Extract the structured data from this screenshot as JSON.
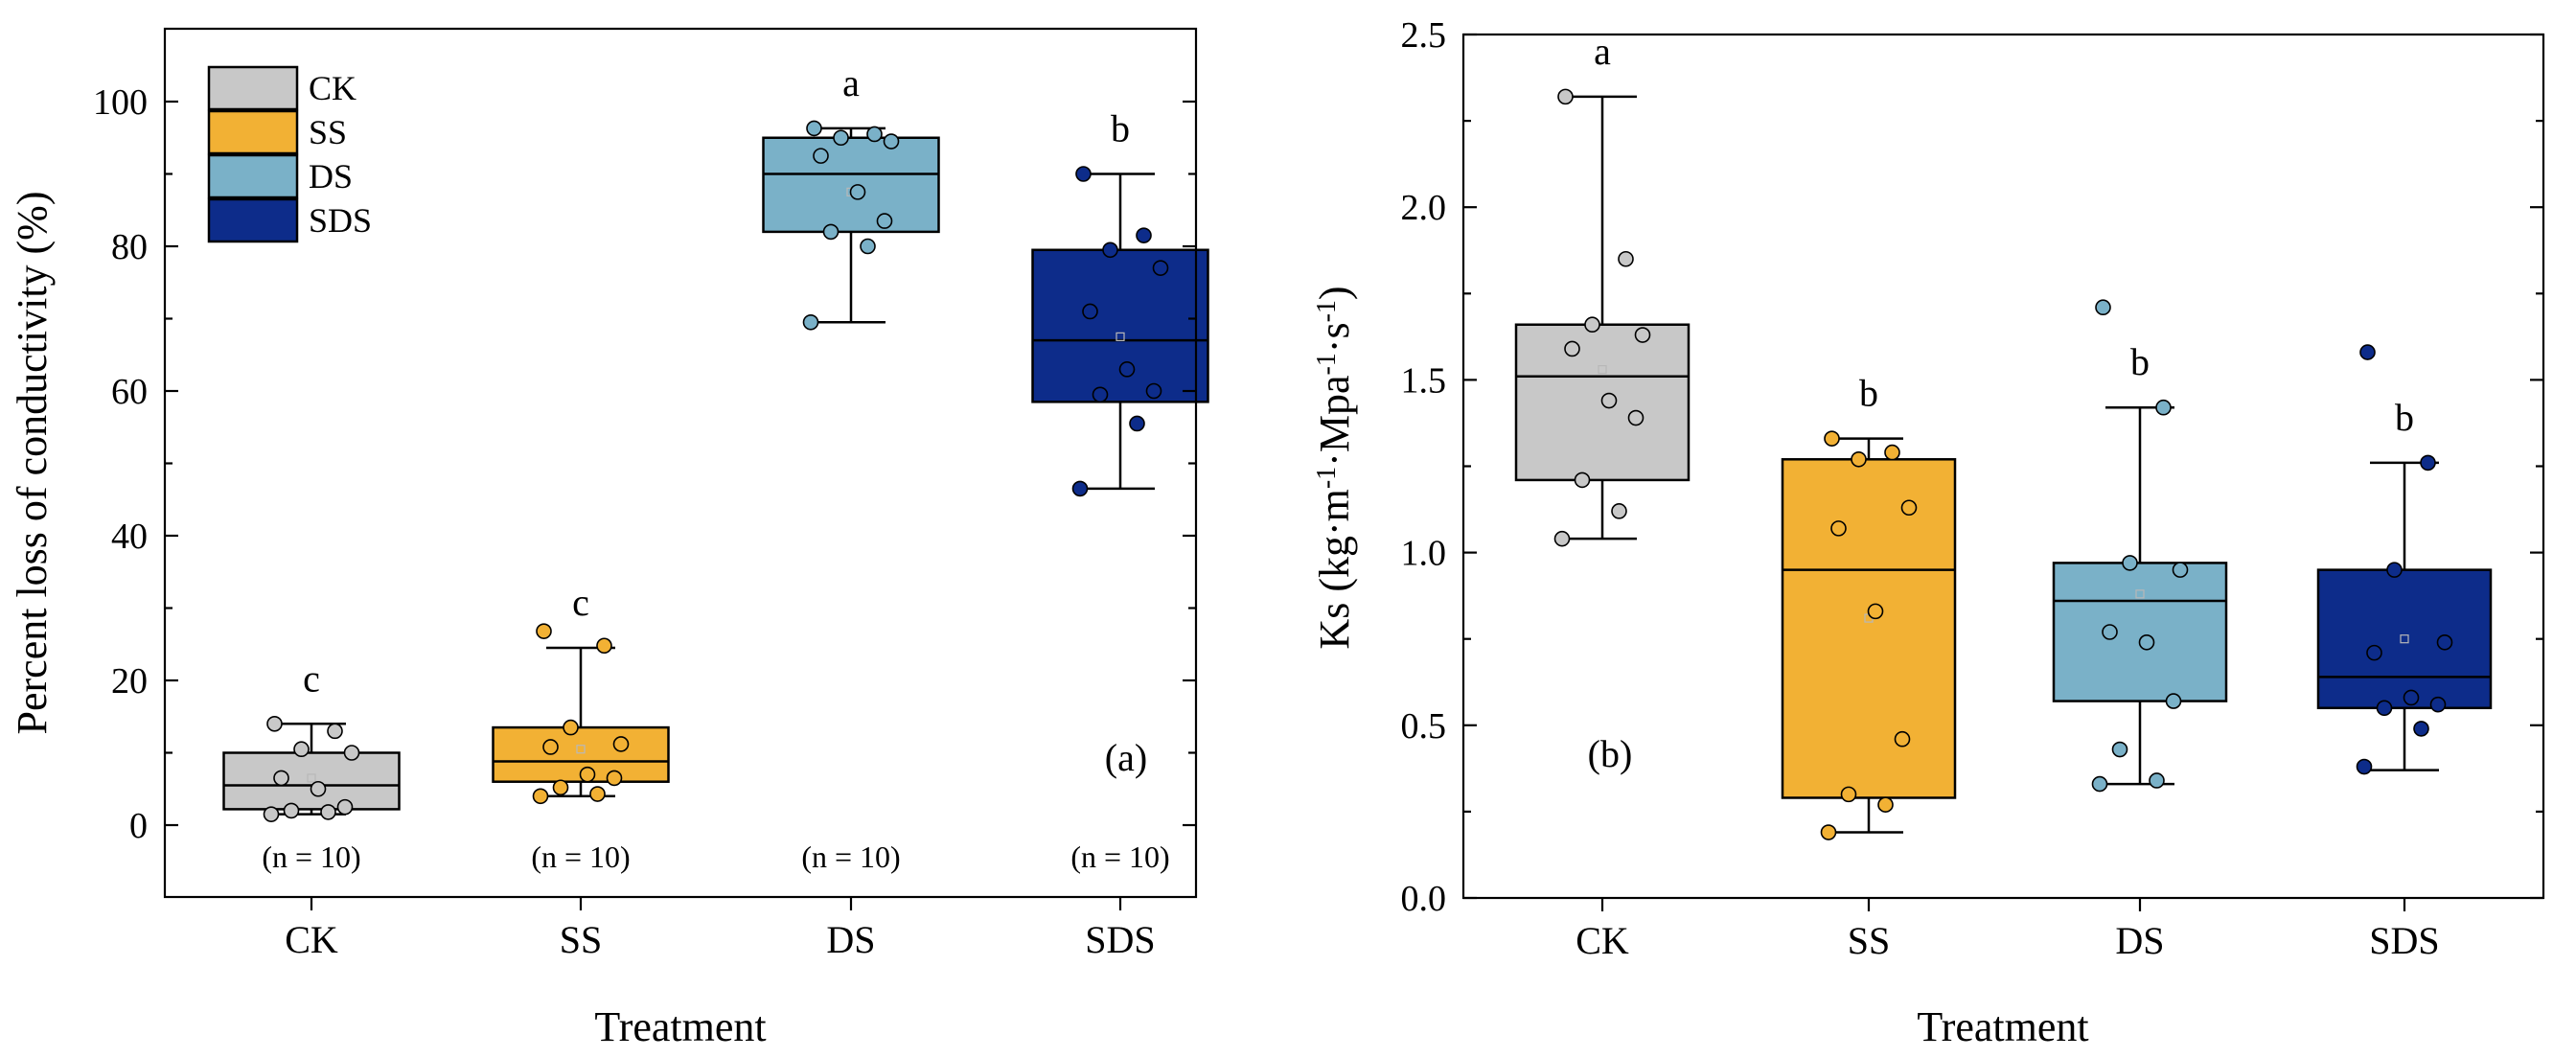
{
  "colors": {
    "CK": "#c8c8c8",
    "SS": "#f2b134",
    "DS": "#7ab1c8",
    "SDS": "#0d2c8a",
    "mean_marker": "#b8b8b8"
  },
  "legend": [
    "CK",
    "SS",
    "DS",
    "SDS"
  ],
  "chart_data": [
    {
      "type": "box",
      "panel": "(a)",
      "xlabel": "Treatment",
      "ylabel": "Percent loss of conductivity (%)",
      "ylim": [
        -10,
        110
      ],
      "yticks": [
        "0",
        "20",
        "40",
        "60",
        "80",
        "100"
      ],
      "categories": [
        "CK",
        "SS",
        "DS",
        "SDS"
      ],
      "significance": [
        "c",
        "c",
        "a",
        "b"
      ],
      "n_labels": [
        "(n = 10)",
        "(n = 10)",
        "(n = 10)",
        "(n = 10)"
      ],
      "boxes": [
        {
          "name": "CK",
          "q1": 2.2,
          "median": 5.5,
          "q3": 10,
          "whisker_low": 1.5,
          "whisker_high": 14,
          "mean": 6.5,
          "points": [
            14,
            13,
            10.5,
            10,
            6.5,
            5,
            2.5,
            2,
            1.8,
            1.5
          ]
        },
        {
          "name": "SS",
          "q1": 6,
          "median": 8.8,
          "q3": 13.5,
          "whisker_low": 4,
          "whisker_high": 24.5,
          "mean": 10.5,
          "points": [
            26.8,
            24.8,
            13.5,
            11.2,
            10.8,
            7,
            6.5,
            5.2,
            4.3,
            4
          ]
        },
        {
          "name": "DS",
          "q1": 82,
          "median": 90,
          "q3": 95,
          "whisker_low": 69.5,
          "whisker_high": 96.3,
          "mean": 87.5,
          "points": [
            96.3,
            95.5,
            95,
            94.5,
            92.5,
            87.5,
            83.5,
            82,
            80,
            69.5
          ]
        },
        {
          "name": "SDS",
          "q1": 58.5,
          "median": 67,
          "q3": 79.5,
          "whisker_low": 46.5,
          "whisker_high": 90,
          "mean": 67.5,
          "points": [
            90,
            81.5,
            79.5,
            77,
            71,
            63,
            60,
            59.5,
            55.5,
            46.5
          ]
        }
      ]
    },
    {
      "type": "box",
      "panel": "(b)",
      "xlabel": "Treatment",
      "ylabel": "Ks (kg·m⁻¹·Mpa⁻¹·s⁻¹)",
      "ylim": [
        0,
        2.5
      ],
      "yticks": [
        "0.0",
        "0.5",
        "1.0",
        "1.5",
        "2.0",
        "2.5"
      ],
      "categories": [
        "CK",
        "SS",
        "DS",
        "SDS"
      ],
      "significance": [
        "a",
        "b",
        "b",
        "b"
      ],
      "boxes": [
        {
          "name": "CK",
          "q1": 1.21,
          "median": 1.51,
          "q3": 1.66,
          "whisker_low": 1.04,
          "whisker_high": 2.32,
          "mean": 1.53,
          "points": [
            2.32,
            1.85,
            1.66,
            1.63,
            1.59,
            1.44,
            1.39,
            1.21,
            1.12,
            1.04
          ]
        },
        {
          "name": "SS",
          "q1": 0.29,
          "median": 0.95,
          "q3": 1.27,
          "whisker_low": 0.19,
          "whisker_high": 1.33,
          "mean": 0.81,
          "points": [
            1.33,
            1.29,
            1.27,
            1.13,
            1.07,
            0.83,
            0.46,
            0.3,
            0.27,
            0.19
          ]
        },
        {
          "name": "DS",
          "q1": 0.57,
          "median": 0.86,
          "q3": 0.97,
          "whisker_low": 0.33,
          "whisker_high": 1.42,
          "mean": 0.88,
          "points": [
            1.71,
            1.42,
            0.97,
            0.95,
            0.77,
            0.74,
            0.57,
            0.43,
            0.34,
            0.33
          ]
        },
        {
          "name": "SDS",
          "q1": 0.55,
          "median": 0.64,
          "q3": 0.95,
          "whisker_low": 0.37,
          "whisker_high": 1.26,
          "mean": 0.75,
          "points": [
            1.58,
            1.26,
            0.95,
            0.74,
            0.71,
            0.58,
            0.56,
            0.55,
            0.49,
            0.38
          ]
        }
      ]
    }
  ]
}
